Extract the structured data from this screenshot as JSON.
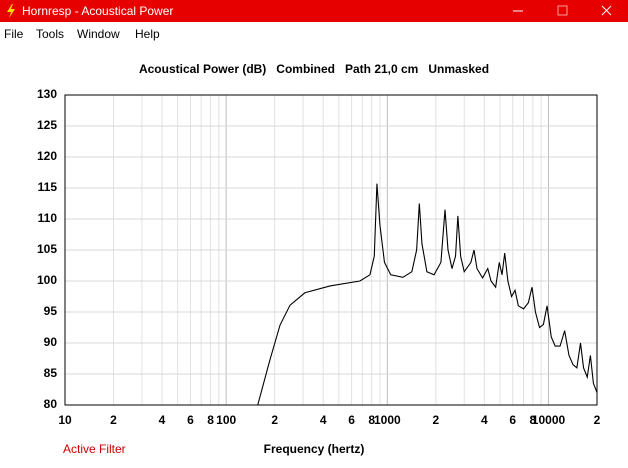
{
  "window": {
    "title": "Hornresp - Acoustical Power"
  },
  "menu": [
    "File",
    "Tools",
    "Window",
    "Help"
  ],
  "status": "Active Filter",
  "chart_data": {
    "type": "line",
    "title": "Acoustical Power (dB)   Combined   Path 21,0 cm   Unmasked",
    "x_label": "Frequency (hertz)",
    "xscale": "log",
    "grid": true,
    "color": "#000000",
    "xlim": [
      10,
      20000
    ],
    "ylim": [
      80,
      130
    ],
    "xticks": [
      10,
      {
        "value": 20,
        "label": "2"
      },
      {
        "value": 40,
        "label": "4"
      },
      {
        "value": 60,
        "label": "6"
      },
      {
        "value": 80,
        "label": "8"
      },
      100,
      {
        "value": 200,
        "label": "2"
      },
      {
        "value": 400,
        "label": "4"
      },
      {
        "value": 600,
        "label": "6"
      },
      {
        "value": 800,
        "label": "8"
      },
      1000,
      {
        "value": 2000,
        "label": "2"
      },
      {
        "value": 4000,
        "label": "4"
      },
      {
        "value": 6000,
        "label": "6"
      },
      {
        "value": 8000,
        "label": "8"
      },
      10000,
      {
        "value": 20000,
        "label": "2"
      }
    ],
    "xminor": [
      30,
      50,
      70,
      90,
      300,
      500,
      700,
      900,
      3000,
      5000,
      7000,
      9000
    ],
    "yticks": [
      80,
      85,
      90,
      95,
      100,
      105,
      110,
      115,
      120,
      125,
      130
    ],
    "x": [
      157,
      187,
      216,
      249,
      308,
      441,
      676,
      780,
      830,
      862,
      900,
      960,
      1050,
      1250,
      1420,
      1520,
      1580,
      1640,
      1760,
      1950,
      2150,
      2280,
      2380,
      2520,
      2650,
      2740,
      2850,
      3000,
      3300,
      3450,
      3600,
      3900,
      4200,
      4400,
      4700,
      4950,
      5150,
      5350,
      5600,
      5900,
      6200,
      6500,
      7000,
      7500,
      7900,
      8300,
      8800,
      9300,
      9800,
      10400,
      11000,
      11800,
      12600,
      13400,
      14200,
      15000,
      15800,
      16500,
      17400,
      18200,
      19000,
      20000
    ],
    "values": [
      80,
      87.3,
      92.9,
      96.1,
      98.1,
      99.2,
      100,
      101,
      104,
      115.7,
      109,
      103,
      101,
      100.6,
      101.5,
      105,
      112.5,
      106,
      101.5,
      101,
      103,
      111.5,
      105,
      102,
      104,
      110.5,
      104,
      101.5,
      103,
      105,
      102,
      100.5,
      102,
      100,
      99,
      103,
      101,
      104.5,
      100,
      97.5,
      98.5,
      96,
      95.5,
      96.5,
      99,
      95,
      92.5,
      93,
      96,
      91,
      89.5,
      89.5,
      92,
      88,
      86.5,
      86,
      90,
      86,
      84.5,
      88,
      83.5,
      82
    ]
  }
}
